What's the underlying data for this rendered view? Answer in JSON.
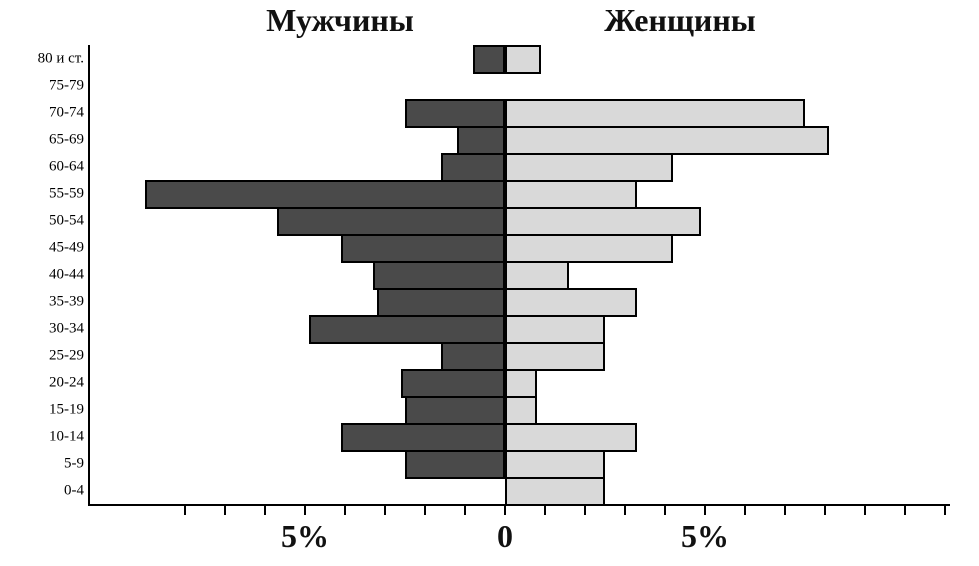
{
  "chart_data": {
    "type": "bar",
    "variant": "population_pyramid",
    "title_left": "Мужчины",
    "title_right": "Женщины",
    "y_axis_categories_top_to_bottom": [
      "80 и ст.",
      "75-79",
      "70-74",
      "65-69",
      "60-64",
      "55-59",
      "50-54",
      "45-49",
      "40-44",
      "35-39",
      "30-34",
      "25-29",
      "20-24",
      "15-19",
      "10-14",
      "5-9",
      "0-4"
    ],
    "series": [
      {
        "name": "Мужчины",
        "side": "left",
        "color": "#4a4a4a",
        "values_percent": [
          0.8,
          0,
          2.5,
          1.2,
          1.6,
          9.0,
          5.7,
          4.1,
          3.3,
          3.2,
          4.9,
          1.6,
          2.6,
          2.5,
          4.1,
          2.5,
          0
        ]
      },
      {
        "name": "Женщины",
        "side": "right",
        "color": "#d9d9d9",
        "values_percent": [
          0.9,
          0,
          7.5,
          8.1,
          4.2,
          3.3,
          4.9,
          4.2,
          1.6,
          3.3,
          2.5,
          2.5,
          0.8,
          0.8,
          3.3,
          2.5,
          2.5
        ]
      }
    ],
    "x_axis": {
      "unit": "%",
      "tick_labels": [
        {
          "label": "5%",
          "value_percent": -5
        },
        {
          "label": "0",
          "value_percent": 0
        },
        {
          "label": "5%",
          "value_percent": 5
        }
      ],
      "minor_tick_interval_percent": 1,
      "range_percent": [
        -10,
        11
      ]
    },
    "legend": "none",
    "grid": "off",
    "colors": {
      "men_fill": "#4a4a4a",
      "women_fill": "#d9d9d9",
      "bar_border": "#000000",
      "axis": "#000000",
      "background": "#ffffff"
    }
  }
}
